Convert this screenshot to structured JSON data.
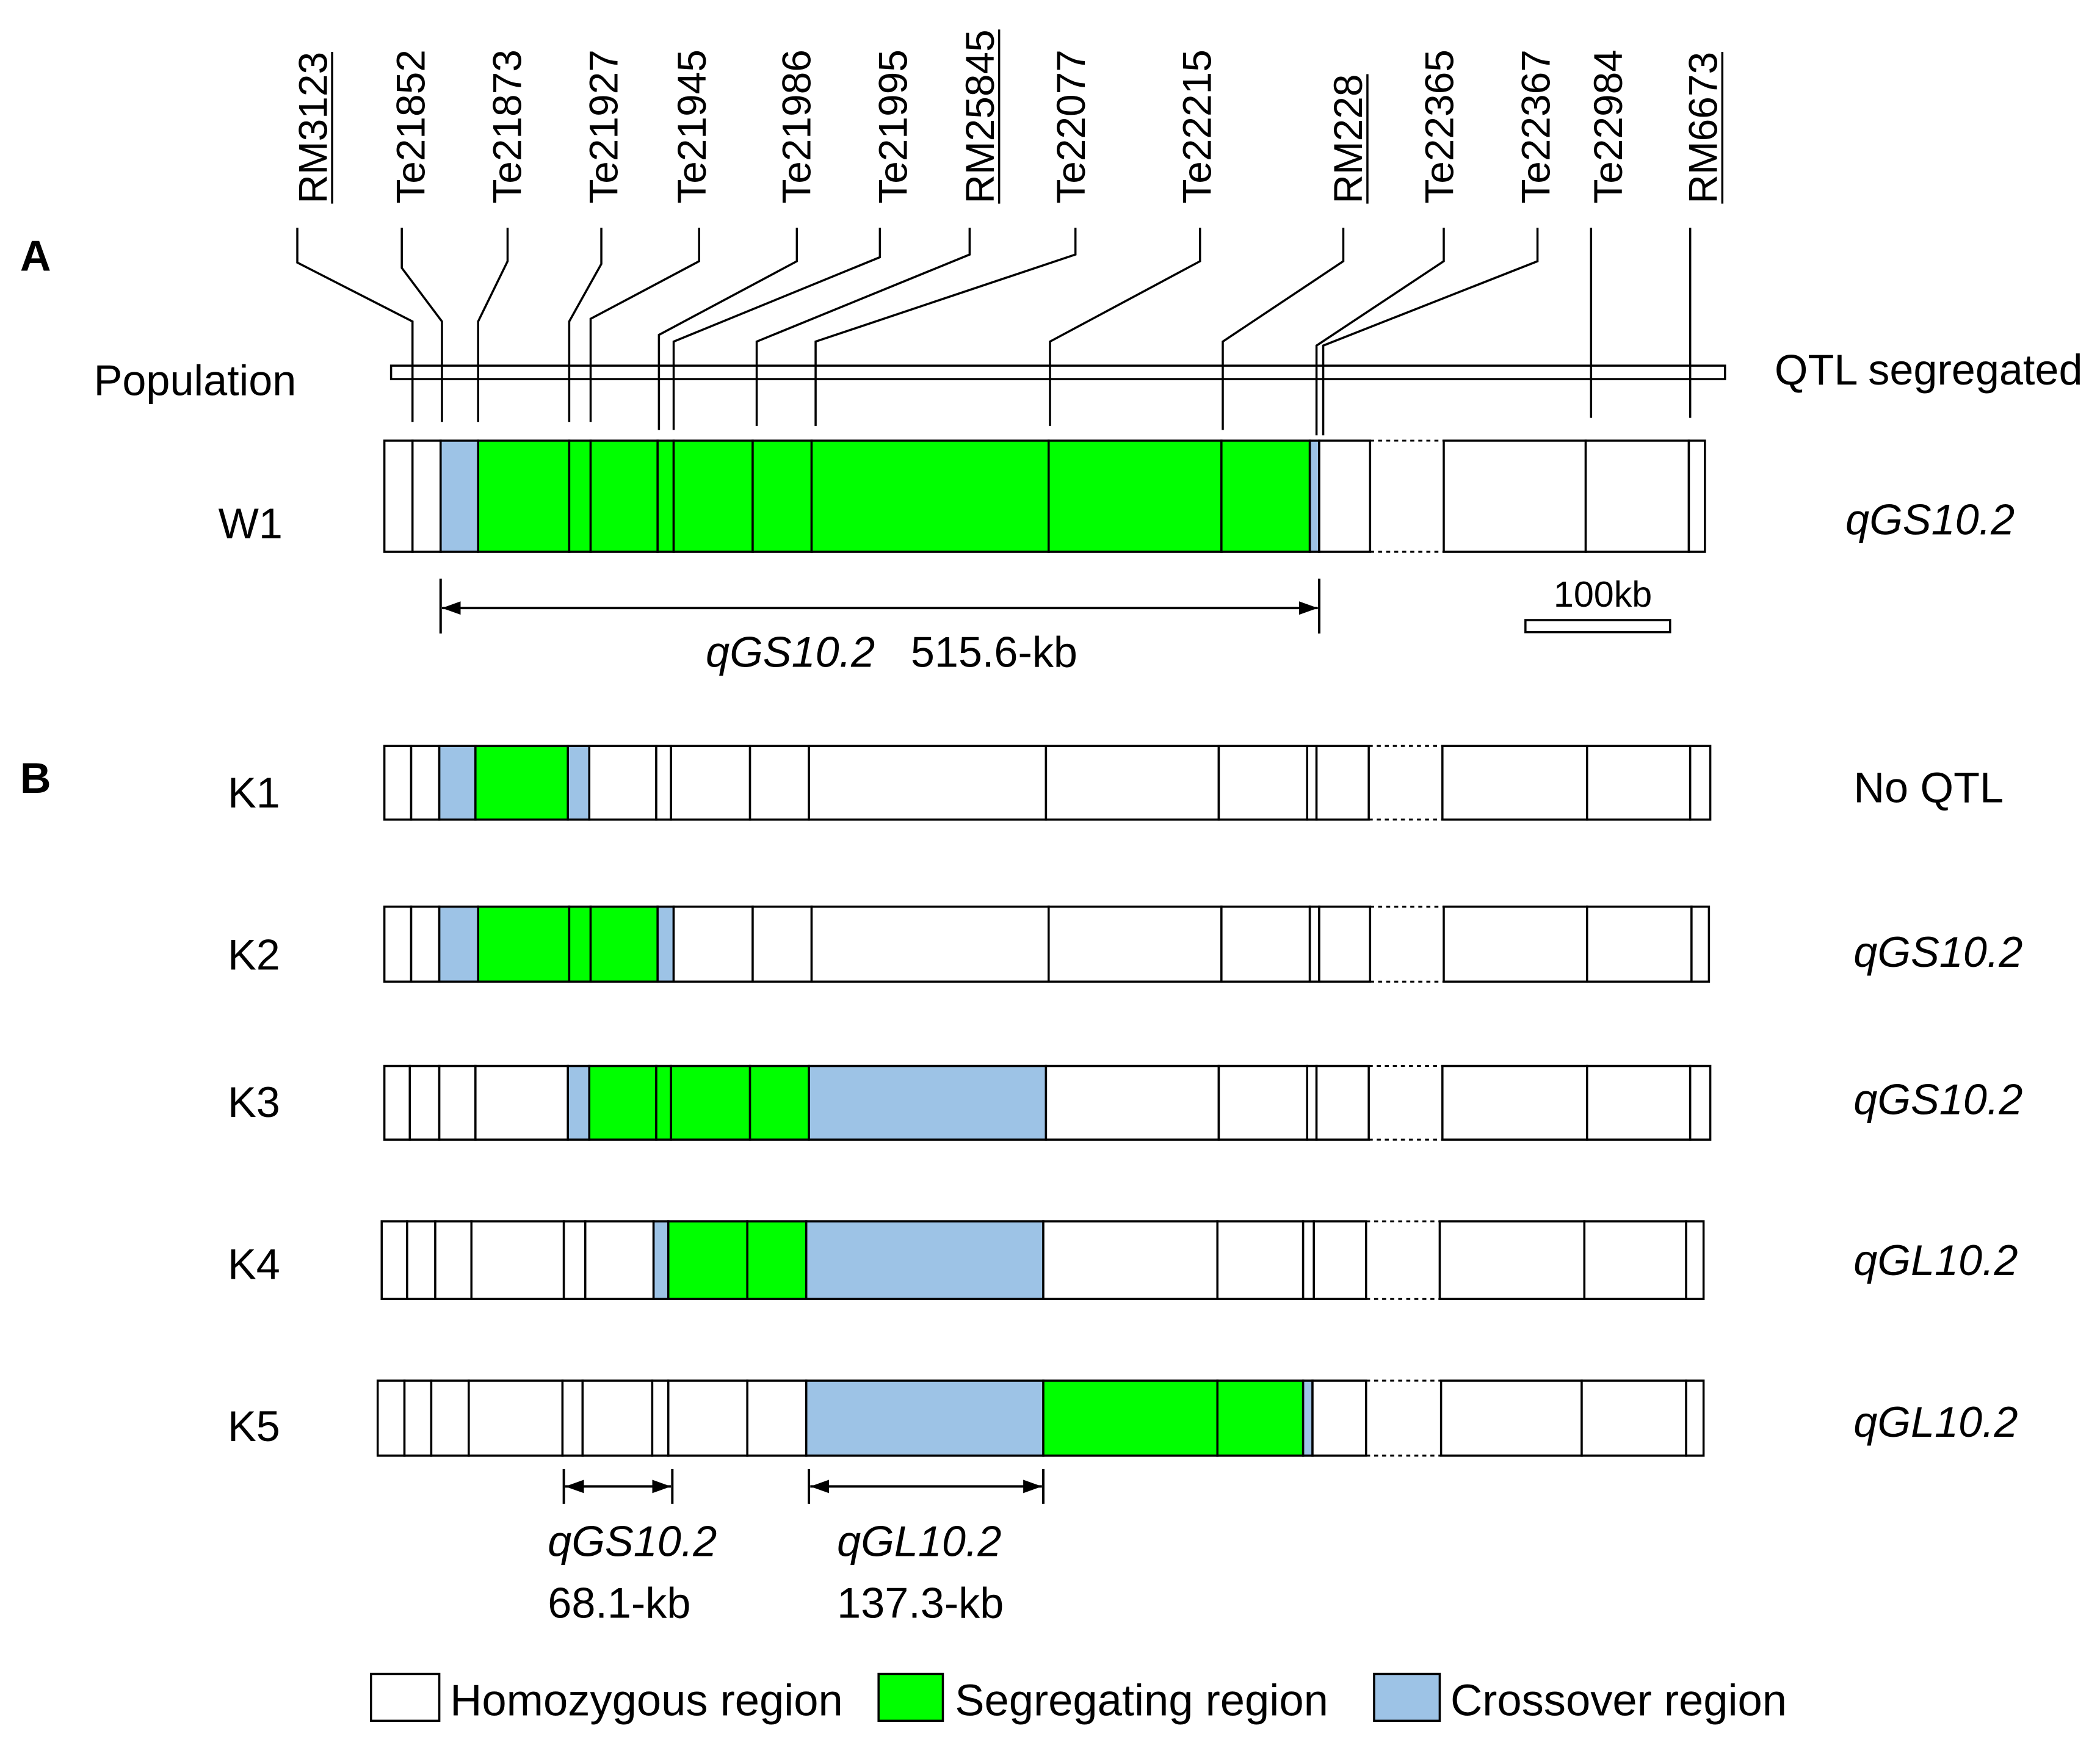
{
  "panels": {
    "a": "A",
    "b": "B"
  },
  "markers": [
    {
      "name": "RM3123",
      "underlined": true
    },
    {
      "name": "Te21852",
      "underlined": false
    },
    {
      "name": "Te21873",
      "underlined": false
    },
    {
      "name": "Te21927",
      "underlined": false
    },
    {
      "name": "Te21945",
      "underlined": false
    },
    {
      "name": "Te21986",
      "underlined": false
    },
    {
      "name": "Te21995",
      "underlined": false
    },
    {
      "name": "RM25845",
      "underlined": true
    },
    {
      "name": "Te22077",
      "underlined": false
    },
    {
      "name": "Te22215",
      "underlined": false
    },
    {
      "name": "RM228",
      "underlined": true
    },
    {
      "name": "Te22365",
      "underlined": false
    },
    {
      "name": "Te22367",
      "underlined": false
    },
    {
      "name": "Te22984",
      "underlined": false
    },
    {
      "name": "RM6673",
      "underlined": true
    }
  ],
  "population": {
    "label": "Population",
    "result_header": "QTL segregated"
  },
  "rows": [
    {
      "label": "W1",
      "result": "qGS10.2",
      "segments": [
        0,
        0,
        2,
        1,
        1,
        1,
        1,
        1,
        1,
        1,
        1,
        1,
        2,
        0,
        0,
        0,
        0,
        0
      ]
    },
    {
      "label": "K1",
      "result": "No QTL",
      "segments": [
        0,
        0,
        2,
        1,
        2,
        0,
        0,
        0,
        0,
        0,
        0,
        0,
        0,
        0,
        0,
        0,
        0,
        0
      ]
    },
    {
      "label": "K2",
      "result": "qGS10.2",
      "segments": [
        0,
        0,
        2,
        1,
        1,
        1,
        2,
        0,
        0,
        0,
        0,
        0,
        0,
        0,
        0,
        0,
        0,
        0
      ]
    },
    {
      "label": "K3",
      "result": "qGS10.2",
      "segments": [
        0,
        0,
        0,
        0,
        2,
        1,
        1,
        1,
        1,
        2,
        0,
        0,
        0,
        0,
        0,
        0,
        0,
        0
      ]
    },
    {
      "label": "K4",
      "result": "qGL10.2",
      "segments": [
        0,
        0,
        0,
        0,
        0,
        0,
        2,
        1,
        1,
        2,
        0,
        0,
        0,
        0,
        0,
        0,
        0,
        0
      ]
    },
    {
      "label": "K5",
      "result": "qGL10.2",
      "segments": [
        0,
        0,
        0,
        0,
        0,
        0,
        0,
        0,
        0,
        2,
        1,
        1,
        2,
        0,
        0,
        0,
        0,
        0
      ]
    }
  ],
  "intervals": {
    "w1": {
      "name": "qGS10.2",
      "size": "515.6-kb"
    },
    "fine_mapped": [
      {
        "name": "qGS10.2",
        "size": "68.1-kb"
      },
      {
        "name": "qGL10.2",
        "size": "137.3-kb"
      }
    ]
  },
  "scale_bar": {
    "label": "100kb"
  },
  "legend": [
    {
      "label": "Homozygous region",
      "color": "#ffffff"
    },
    {
      "label": "Segregating region",
      "color": "#00ff00"
    },
    {
      "label": "Crossover region",
      "color": "#9dc3e6"
    }
  ]
}
